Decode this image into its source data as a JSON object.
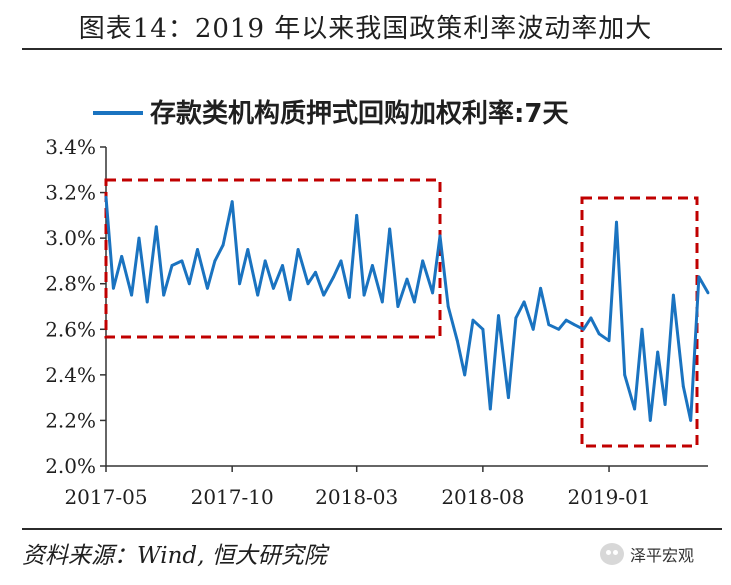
{
  "title": "图表14：2019 年以来我国政策利率波动率加大",
  "source": "资料来源：Wind, 恒大研究院",
  "watermark": "泽平宏观",
  "colors": {
    "series": "#1a73c0",
    "highlight_box": "#c00000",
    "axis": "#333333"
  },
  "chart_data": {
    "type": "line",
    "title": "",
    "legend": [
      "存款类机构质押式回购加权利率:7天"
    ],
    "legend_position": "top-center",
    "x_tick_labels": [
      "2017-05",
      "2017-10",
      "2018-03",
      "2018-08",
      "2019-01"
    ],
    "y_tick_labels": [
      "2.0%",
      "2.2%",
      "2.4%",
      "2.6%",
      "2.8%",
      "3.0%",
      "3.2%",
      "3.4%"
    ],
    "ylim": [
      2.0,
      3.4
    ],
    "xlim": [
      "2017-05",
      "2019-05"
    ],
    "grid": false,
    "series": [
      {
        "name": "存款类机构质押式回购加权利率:7天",
        "x": [
          "2017-05-01",
          "2017-05-10",
          "2017-05-20",
          "2017-06-01",
          "2017-06-10",
          "2017-06-20",
          "2017-07-01",
          "2017-07-10",
          "2017-07-20",
          "2017-08-01",
          "2017-08-10",
          "2017-08-20",
          "2017-09-01",
          "2017-09-10",
          "2017-09-20",
          "2017-10-01",
          "2017-10-10",
          "2017-10-20",
          "2017-11-01",
          "2017-11-10",
          "2017-11-20",
          "2017-12-01",
          "2017-12-10",
          "2017-12-20",
          "2018-01-01",
          "2018-01-10",
          "2018-01-20",
          "2018-02-01",
          "2018-02-10",
          "2018-02-20",
          "2018-03-01",
          "2018-03-10",
          "2018-03-20",
          "2018-04-01",
          "2018-04-10",
          "2018-04-20",
          "2018-05-01",
          "2018-05-10",
          "2018-05-20",
          "2018-06-01",
          "2018-06-10",
          "2018-06-20",
          "2018-07-01",
          "2018-07-10",
          "2018-07-20",
          "2018-08-01",
          "2018-08-10",
          "2018-08-20",
          "2018-09-01",
          "2018-09-10",
          "2018-09-20",
          "2018-10-01",
          "2018-10-10",
          "2018-10-20",
          "2018-11-01",
          "2018-11-10",
          "2018-11-20",
          "2018-12-01",
          "2018-12-10",
          "2018-12-20",
          "2019-01-01",
          "2019-01-10",
          "2019-01-20",
          "2019-02-01",
          "2019-02-10",
          "2019-02-20",
          "2019-03-01",
          "2019-03-10",
          "2019-03-20",
          "2019-04-01",
          "2019-04-10",
          "2019-04-20",
          "2019-05-01"
        ],
        "values": [
          3.18,
          2.78,
          2.92,
          2.75,
          3.0,
          2.72,
          3.05,
          2.75,
          2.88,
          2.9,
          2.8,
          2.95,
          2.78,
          2.9,
          2.97,
          3.16,
          2.8,
          2.95,
          2.75,
          2.9,
          2.78,
          2.88,
          2.73,
          2.95,
          2.8,
          2.85,
          2.75,
          2.83,
          2.9,
          2.74,
          3.1,
          2.75,
          2.88,
          2.72,
          3.04,
          2.7,
          2.82,
          2.72,
          2.9,
          2.76,
          3.01,
          2.7,
          2.55,
          2.4,
          2.64,
          2.6,
          2.25,
          2.66,
          2.3,
          2.65,
          2.72,
          2.6,
          2.78,
          2.62,
          2.6,
          2.64,
          2.62,
          2.6,
          2.65,
          2.58,
          2.55,
          3.07,
          2.4,
          2.25,
          2.6,
          2.2,
          2.5,
          2.27,
          2.75,
          2.35,
          2.2,
          2.83,
          2.76
        ]
      }
    ]
  }
}
